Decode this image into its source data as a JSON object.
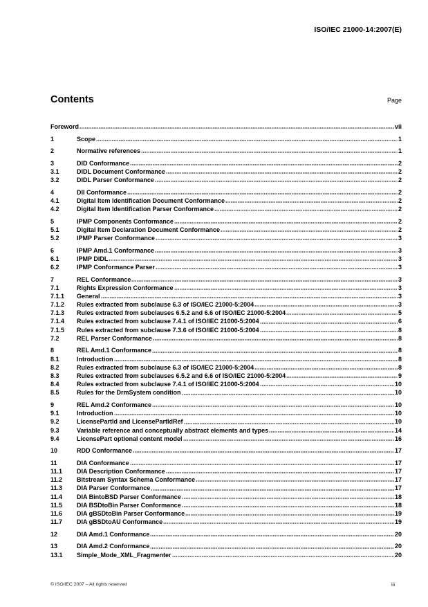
{
  "header": {
    "doc_id": "ISO/IEC 21000-14:2007(E)"
  },
  "contents": {
    "title": "Contents",
    "page_label": "Page"
  },
  "toc_groups": [
    [
      {
        "num": "",
        "title": "Foreword",
        "page": "vii"
      }
    ],
    [
      {
        "num": "1",
        "title": "Scope",
        "page": "1"
      }
    ],
    [
      {
        "num": "2",
        "title": "Normative references",
        "page": "1"
      }
    ],
    [
      {
        "num": "3",
        "title": "DID Conformance",
        "page": "2"
      },
      {
        "num": "3.1",
        "title": "DIDL Document Conformance",
        "page": "2"
      },
      {
        "num": "3.2",
        "title": "DIDL Parser Conformance",
        "page": "2"
      }
    ],
    [
      {
        "num": "4",
        "title": "DII Conformance",
        "page": "2"
      },
      {
        "num": "4.1",
        "title": "Digital Item Identification Document Conformance",
        "page": "2"
      },
      {
        "num": "4.2",
        "title": "Digital Item Identification Parser Conformance",
        "page": "2"
      }
    ],
    [
      {
        "num": "5",
        "title": "IPMP Components Conformance",
        "page": "2"
      },
      {
        "num": "5.1",
        "title": "Digital Item Declaration Document Conformance",
        "page": "2"
      },
      {
        "num": "5.2",
        "title": "IPMP Parser Conformance",
        "page": "3"
      }
    ],
    [
      {
        "num": "6",
        "title": "IPMP Amd.1 Conformance",
        "page": "3"
      },
      {
        "num": "6.1",
        "title": "IPMP DIDL",
        "page": "3"
      },
      {
        "num": "6.2",
        "title": "IPMP Conformance Parser",
        "page": "3"
      }
    ],
    [
      {
        "num": "7",
        "title": "REL Conformance",
        "page": "3"
      },
      {
        "num": "7.1",
        "title": "Rights Expression Conformance",
        "page": "3"
      },
      {
        "num": "7.1.1",
        "title": "General",
        "page": "3"
      },
      {
        "num": "7.1.2",
        "title": "Rules extracted from subclause 6.3 of ISO/IEC 21000-5:2004",
        "page": "3"
      },
      {
        "num": "7.1.3",
        "title": "Rules extracted from subclauses 6.5.2 and 6.6 of ISO/IEC 21000-5:2004",
        "page": "5"
      },
      {
        "num": "7.1.4",
        "title": "Rules extracted from subclause 7.4.1 of ISO/IEC 21000-5:2004",
        "page": "6"
      },
      {
        "num": "7.1.5",
        "title": "Rules extracted from subclause 7.3.6 of ISO/IEC 21000-5:2004",
        "page": "8"
      },
      {
        "num": "7.2",
        "title": "REL Parser Conformance",
        "page": "8"
      }
    ],
    [
      {
        "num": "8",
        "title": "REL Amd.1 Conformance",
        "page": "8"
      },
      {
        "num": "8.1",
        "title": "Introduction",
        "page": "8"
      },
      {
        "num": "8.2",
        "title": "Rules extracted from subclause 6.3 of ISO/IEC 21000-5:2004",
        "page": "8"
      },
      {
        "num": "8.3",
        "title": "Rules extracted from subclauses 6.5.2 and 6.6 of ISO/IEC 21000-5:2004",
        "page": "9"
      },
      {
        "num": "8.4",
        "title": "Rules extracted from subclause 7.4.1 of ISO/IEC 21000-5:2004",
        "page": "10"
      },
      {
        "num": "8.5",
        "title": "Rules for the DrmSystem condition",
        "page": "10"
      }
    ],
    [
      {
        "num": "9",
        "title": "REL Amd.2 Conformance",
        "page": "10"
      },
      {
        "num": "9.1",
        "title": "Introduction",
        "page": "10"
      },
      {
        "num": "9.2",
        "title": "LicensePartId and LicensePartIdRef",
        "page": "10"
      },
      {
        "num": "9.3",
        "title": "Variable reference and conceptually abstract elements and types",
        "page": "14"
      },
      {
        "num": "9.4",
        "title": "LicensePart optional content model",
        "page": "16"
      }
    ],
    [
      {
        "num": "10",
        "title": "RDD Conformance",
        "page": "17"
      }
    ],
    [
      {
        "num": "11",
        "title": "DIA Conformance",
        "page": "17"
      },
      {
        "num": "11.1",
        "title": "DIA Description Conformance",
        "page": "17"
      },
      {
        "num": "11.2",
        "title": "Bitstream Syntax Schema Conformance",
        "page": "17"
      },
      {
        "num": "11.3",
        "title": "DIA Parser Conformance",
        "page": "17"
      },
      {
        "num": "11.4",
        "title": "DIA BintoBSD Parser Conformance",
        "page": "18"
      },
      {
        "num": "11.5",
        "title": "DIA BSDtoBin Parser Conformance",
        "page": "18"
      },
      {
        "num": "11.6",
        "title": "DIA gBSDtoBin Parser Conformance",
        "page": "19"
      },
      {
        "num": "11.7",
        "title": "DIA gBSDtoAU Conformance",
        "page": "19"
      }
    ],
    [
      {
        "num": "12",
        "title": "DIA Amd.1 Conformance",
        "page": "20"
      }
    ],
    [
      {
        "num": "13",
        "title": "DIA Amd.2 Conformance",
        "page": "20"
      },
      {
        "num": "13.1",
        "title": "Simple_Mode_XML_Fragmenter",
        "page": "20"
      }
    ]
  ],
  "footer": {
    "copyright": "© ISO/IEC 2007 – All rights reserved",
    "page_number": "iii"
  }
}
